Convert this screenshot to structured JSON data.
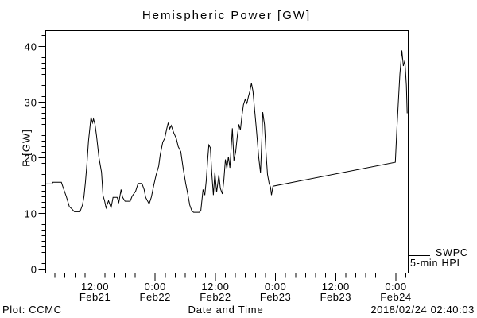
{
  "footer": {
    "left": "Plot: CCMC",
    "right": "2018/02/24 02:40:03"
  },
  "legend": {
    "label_line1": "SWPC",
    "label_line2": "5-min HPI"
  },
  "chart_data": {
    "type": "line",
    "title": "Hemispheric Power [GW]",
    "xlabel": "Date and Time",
    "ylabel": "P [GW]",
    "x_unit": "hours since 2018-02-21 00:00 UT",
    "xlim_hours": [
      2.2,
      74.5
    ],
    "ylim": [
      0,
      43
    ],
    "grid": false,
    "line_color": "#000000",
    "y_ticks": [
      0,
      10,
      20,
      30,
      40
    ],
    "y_minor_step": 1,
    "x_minor_step_hours": 2,
    "x_ticks": [
      {
        "time": "12:00",
        "date": "Feb21",
        "hours": 12
      },
      {
        "time": "0:00",
        "date": "Feb22",
        "hours": 24
      },
      {
        "time": "12:00",
        "date": "Feb22",
        "hours": 36
      },
      {
        "time": "0:00",
        "date": "Feb23",
        "hours": 48
      },
      {
        "time": "12:00",
        "date": "Feb23",
        "hours": 60
      },
      {
        "time": "0:00",
        "date": "Feb24",
        "hours": 72
      }
    ],
    "series": [
      {
        "name": "SWPC 5-min HPI",
        "points": [
          [
            2.2,
            15.3
          ],
          [
            3.4,
            15.3
          ],
          [
            3.6,
            15.6
          ],
          [
            5.3,
            15.6
          ],
          [
            5.7,
            14.5
          ],
          [
            6.3,
            13.0
          ],
          [
            6.9,
            11.2
          ],
          [
            7.4,
            10.8
          ],
          [
            7.9,
            10.3
          ],
          [
            9.0,
            10.3
          ],
          [
            9.5,
            11.5
          ],
          [
            9.8,
            13.0
          ],
          [
            10.1,
            15.7
          ],
          [
            10.4,
            19.0
          ],
          [
            10.7,
            23.0
          ],
          [
            11.05,
            26.0
          ],
          [
            11.2,
            27.3
          ],
          [
            11.5,
            26.3
          ],
          [
            11.7,
            27.0
          ],
          [
            12.0,
            26.0
          ],
          [
            12.3,
            24.0
          ],
          [
            12.8,
            20.0
          ],
          [
            13.3,
            17.4
          ],
          [
            13.6,
            13.2
          ],
          [
            13.9,
            12.3
          ],
          [
            14.2,
            11.0
          ],
          [
            14.7,
            12.3
          ],
          [
            15.2,
            11.0
          ],
          [
            15.6,
            12.9
          ],
          [
            16.4,
            12.9
          ],
          [
            16.75,
            12.0
          ],
          [
            17.2,
            14.3
          ],
          [
            17.5,
            12.9
          ],
          [
            18.0,
            12.2
          ],
          [
            19.0,
            12.2
          ],
          [
            19.4,
            13.1
          ],
          [
            20.1,
            14.0
          ],
          [
            20.6,
            15.4
          ],
          [
            21.35,
            15.4
          ],
          [
            21.8,
            14.3
          ],
          [
            22.1,
            12.9
          ],
          [
            22.8,
            11.7
          ],
          [
            23.25,
            13.0
          ],
          [
            23.7,
            15.0
          ],
          [
            24.2,
            17.0
          ],
          [
            24.7,
            18.5
          ],
          [
            25.0,
            20.5
          ],
          [
            25.5,
            22.8
          ],
          [
            25.9,
            23.5
          ],
          [
            26.3,
            25.2
          ],
          [
            26.6,
            26.3
          ],
          [
            26.9,
            25.2
          ],
          [
            27.2,
            25.8
          ],
          [
            27.7,
            24.5
          ],
          [
            28.2,
            23.5
          ],
          [
            28.6,
            22.0
          ],
          [
            29.1,
            21.1
          ],
          [
            29.6,
            18.0
          ],
          [
            30.1,
            15.3
          ],
          [
            30.5,
            13.5
          ],
          [
            30.9,
            11.5
          ],
          [
            31.3,
            10.5
          ],
          [
            31.65,
            10.2
          ],
          [
            32.8,
            10.2
          ],
          [
            33.1,
            10.5
          ],
          [
            33.55,
            14.3
          ],
          [
            33.9,
            13.3
          ],
          [
            34.2,
            16.0
          ],
          [
            34.5,
            20.0
          ],
          [
            34.7,
            22.3
          ],
          [
            35.0,
            21.8
          ],
          [
            35.3,
            17.0
          ],
          [
            35.6,
            13.3
          ],
          [
            35.9,
            17.4
          ],
          [
            36.25,
            13.8
          ],
          [
            36.7,
            16.9
          ],
          [
            37.0,
            14.5
          ],
          [
            37.4,
            13.5
          ],
          [
            37.7,
            16.0
          ],
          [
            38.0,
            19.7
          ],
          [
            38.3,
            18.1
          ],
          [
            38.6,
            20.2
          ],
          [
            38.9,
            18.2
          ],
          [
            39.4,
            25.3
          ],
          [
            39.7,
            19.5
          ],
          [
            40.05,
            21.0
          ],
          [
            40.4,
            24.0
          ],
          [
            40.7,
            26.0
          ],
          [
            41.0,
            25.0
          ],
          [
            41.3,
            27.5
          ],
          [
            41.6,
            29.5
          ],
          [
            41.95,
            30.5
          ],
          [
            42.3,
            29.8
          ],
          [
            42.6,
            31.0
          ],
          [
            42.9,
            32.0
          ],
          [
            43.2,
            33.4
          ],
          [
            43.5,
            32.0
          ],
          [
            43.9,
            28.0
          ],
          [
            44.2,
            25.0
          ],
          [
            44.65,
            20.0
          ],
          [
            45.0,
            17.3
          ],
          [
            45.3,
            24.0
          ],
          [
            45.45,
            28.2
          ],
          [
            45.8,
            26.0
          ],
          [
            46.1,
            21.0
          ],
          [
            46.4,
            17.0
          ],
          [
            46.7,
            15.5
          ],
          [
            47.0,
            14.7
          ],
          [
            47.2,
            13.3
          ],
          [
            47.5,
            14.9
          ],
          [
            71.9,
            19.2
          ],
          [
            72.2,
            25.0
          ],
          [
            72.5,
            30.0
          ],
          [
            72.8,
            35.0
          ],
          [
            73.2,
            39.3
          ],
          [
            73.5,
            36.5
          ],
          [
            73.8,
            37.5
          ],
          [
            74.1,
            33.0
          ],
          [
            74.25,
            28.0
          ]
        ]
      }
    ]
  }
}
